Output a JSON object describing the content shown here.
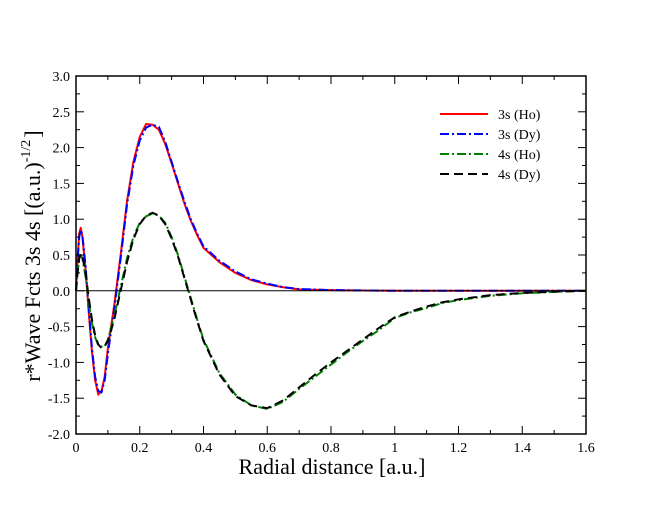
{
  "chart_data": {
    "type": "line",
    "title": "",
    "xlabel": "Radial distance [a.u.]",
    "ylabel": "r*Wave Fcts 3s 4s [(a.u.)",
    "ylabel_exponent": "-1/2",
    "ylabel_close": "]",
    "xlim": [
      0,
      1.6
    ],
    "ylim": [
      -2.0,
      3.0
    ],
    "x_major_ticks": [
      0,
      0.2,
      0.4,
      0.6,
      0.8,
      1.0,
      1.2,
      1.4,
      1.6
    ],
    "x_tick_labels": [
      "0",
      "0.2",
      "0.4",
      "0.6",
      "0.8",
      "1",
      "1.2",
      "1.4",
      "1.6"
    ],
    "y_major_ticks": [
      -2.0,
      -1.5,
      -1.0,
      -0.5,
      0.0,
      0.5,
      1.0,
      1.5,
      2.0,
      2.5,
      3.0
    ],
    "y_tick_labels": [
      "-2.0",
      "-1.5",
      "-1.0",
      "-0.5",
      "0.0",
      "0.5",
      "1.0",
      "1.5",
      "2.0",
      "2.5",
      "3.0"
    ],
    "zero_line": true,
    "grid": false,
    "legend_position": "top-right",
    "series": [
      {
        "name": "3s (Ho)",
        "color": "#ff0000",
        "dash": "solid",
        "points": [
          [
            0,
            0
          ],
          [
            0.005,
            0.45
          ],
          [
            0.01,
            0.8
          ],
          [
            0.015,
            0.88
          ],
          [
            0.02,
            0.75
          ],
          [
            0.03,
            0.3
          ],
          [
            0.04,
            -0.3
          ],
          [
            0.05,
            -0.85
          ],
          [
            0.06,
            -1.25
          ],
          [
            0.07,
            -1.45
          ],
          [
            0.08,
            -1.4
          ],
          [
            0.09,
            -1.2
          ],
          [
            0.1,
            -0.8
          ],
          [
            0.12,
            -0.2
          ],
          [
            0.14,
            0.5
          ],
          [
            0.16,
            1.25
          ],
          [
            0.18,
            1.8
          ],
          [
            0.2,
            2.15
          ],
          [
            0.22,
            2.33
          ],
          [
            0.24,
            2.32
          ],
          [
            0.26,
            2.25
          ],
          [
            0.28,
            2.05
          ],
          [
            0.3,
            1.78
          ],
          [
            0.32,
            1.5
          ],
          [
            0.34,
            1.22
          ],
          [
            0.36,
            0.98
          ],
          [
            0.38,
            0.78
          ],
          [
            0.4,
            0.6
          ],
          [
            0.45,
            0.4
          ],
          [
            0.5,
            0.25
          ],
          [
            0.55,
            0.15
          ],
          [
            0.6,
            0.09
          ],
          [
            0.65,
            0.05
          ],
          [
            0.7,
            0.02
          ],
          [
            0.8,
            0.01
          ],
          [
            0.9,
            0.005
          ],
          [
            1.0,
            0
          ],
          [
            1.2,
            0
          ],
          [
            1.4,
            0
          ],
          [
            1.6,
            0
          ]
        ]
      },
      {
        "name": "3s (Dy)",
        "color": "#0000ff",
        "dash": "dashdot",
        "points": [
          [
            0,
            0
          ],
          [
            0.005,
            0.4
          ],
          [
            0.01,
            0.75
          ],
          [
            0.015,
            0.85
          ],
          [
            0.02,
            0.78
          ],
          [
            0.03,
            0.35
          ],
          [
            0.04,
            -0.25
          ],
          [
            0.05,
            -0.8
          ],
          [
            0.06,
            -1.2
          ],
          [
            0.07,
            -1.4
          ],
          [
            0.08,
            -1.42
          ],
          [
            0.09,
            -1.25
          ],
          [
            0.1,
            -0.88
          ],
          [
            0.12,
            -0.25
          ],
          [
            0.14,
            0.45
          ],
          [
            0.16,
            1.2
          ],
          [
            0.18,
            1.75
          ],
          [
            0.2,
            2.1
          ],
          [
            0.22,
            2.28
          ],
          [
            0.24,
            2.32
          ],
          [
            0.26,
            2.29
          ],
          [
            0.28,
            2.08
          ],
          [
            0.3,
            1.8
          ],
          [
            0.32,
            1.52
          ],
          [
            0.34,
            1.25
          ],
          [
            0.36,
            1.0
          ],
          [
            0.38,
            0.8
          ],
          [
            0.4,
            0.62
          ],
          [
            0.45,
            0.42
          ],
          [
            0.5,
            0.27
          ],
          [
            0.55,
            0.16
          ],
          [
            0.6,
            0.1
          ],
          [
            0.65,
            0.05
          ],
          [
            0.7,
            0.025
          ],
          [
            0.8,
            0.01
          ],
          [
            0.9,
            0.005
          ],
          [
            1.0,
            0
          ],
          [
            1.2,
            0
          ],
          [
            1.4,
            0
          ],
          [
            1.6,
            0
          ]
        ]
      },
      {
        "name": "4s (Ho)",
        "color": "#008000",
        "dash": "dashdot",
        "points": [
          [
            0,
            0
          ],
          [
            0.005,
            0.25
          ],
          [
            0.01,
            0.45
          ],
          [
            0.015,
            0.5
          ],
          [
            0.02,
            0.45
          ],
          [
            0.03,
            0.2
          ],
          [
            0.04,
            -0.15
          ],
          [
            0.05,
            -0.45
          ],
          [
            0.06,
            -0.65
          ],
          [
            0.07,
            -0.76
          ],
          [
            0.08,
            -0.78
          ],
          [
            0.09,
            -0.78
          ],
          [
            0.1,
            -0.68
          ],
          [
            0.12,
            -0.35
          ],
          [
            0.14,
            0.05
          ],
          [
            0.16,
            0.45
          ],
          [
            0.18,
            0.75
          ],
          [
            0.2,
            0.95
          ],
          [
            0.22,
            1.04
          ],
          [
            0.24,
            1.08
          ],
          [
            0.26,
            1.05
          ],
          [
            0.28,
            0.95
          ],
          [
            0.3,
            0.75
          ],
          [
            0.32,
            0.5
          ],
          [
            0.34,
            0.2
          ],
          [
            0.36,
            -0.1
          ],
          [
            0.38,
            -0.4
          ],
          [
            0.4,
            -0.68
          ],
          [
            0.45,
            -1.15
          ],
          [
            0.5,
            -1.45
          ],
          [
            0.55,
            -1.6
          ],
          [
            0.6,
            -1.65
          ],
          [
            0.65,
            -1.55
          ],
          [
            0.7,
            -1.37
          ],
          [
            0.75,
            -1.2
          ],
          [
            0.8,
            -1.03
          ],
          [
            0.85,
            -0.86
          ],
          [
            0.9,
            -0.7
          ],
          [
            0.95,
            -0.55
          ],
          [
            1.0,
            -0.38
          ],
          [
            1.05,
            -0.3
          ],
          [
            1.1,
            -0.24
          ],
          [
            1.15,
            -0.17
          ],
          [
            1.2,
            -0.13
          ],
          [
            1.3,
            -0.07
          ],
          [
            1.4,
            -0.035
          ],
          [
            1.5,
            -0.015
          ],
          [
            1.6,
            0
          ]
        ]
      },
      {
        "name": "4s (Dy)",
        "color": "#000000",
        "dash": "dashed",
        "points": [
          [
            0,
            0
          ],
          [
            0.005,
            0.25
          ],
          [
            0.01,
            0.45
          ],
          [
            0.015,
            0.52
          ],
          [
            0.02,
            0.48
          ],
          [
            0.03,
            0.25
          ],
          [
            0.04,
            -0.1
          ],
          [
            0.05,
            -0.4
          ],
          [
            0.06,
            -0.62
          ],
          [
            0.07,
            -0.75
          ],
          [
            0.08,
            -0.8
          ],
          [
            0.09,
            -0.77
          ],
          [
            0.1,
            -0.7
          ],
          [
            0.12,
            -0.4
          ],
          [
            0.14,
            0.0
          ],
          [
            0.16,
            0.4
          ],
          [
            0.18,
            0.72
          ],
          [
            0.2,
            0.93
          ],
          [
            0.22,
            1.05
          ],
          [
            0.24,
            1.09
          ],
          [
            0.26,
            1.05
          ],
          [
            0.28,
            0.93
          ],
          [
            0.3,
            0.73
          ],
          [
            0.32,
            0.48
          ],
          [
            0.34,
            0.18
          ],
          [
            0.36,
            -0.12
          ],
          [
            0.38,
            -0.42
          ],
          [
            0.4,
            -0.7
          ],
          [
            0.45,
            -1.17
          ],
          [
            0.5,
            -1.47
          ],
          [
            0.55,
            -1.6
          ],
          [
            0.6,
            -1.64
          ],
          [
            0.65,
            -1.53
          ],
          [
            0.7,
            -1.35
          ],
          [
            0.75,
            -1.17
          ],
          [
            0.8,
            -1.0
          ],
          [
            0.85,
            -0.84
          ],
          [
            0.9,
            -0.68
          ],
          [
            0.95,
            -0.52
          ],
          [
            1.0,
            -0.37
          ],
          [
            1.05,
            -0.29
          ],
          [
            1.1,
            -0.22
          ],
          [
            1.15,
            -0.16
          ],
          [
            1.2,
            -0.12
          ],
          [
            1.3,
            -0.06
          ],
          [
            1.4,
            -0.03
          ],
          [
            1.5,
            -0.012
          ],
          [
            1.6,
            0
          ]
        ]
      }
    ]
  }
}
